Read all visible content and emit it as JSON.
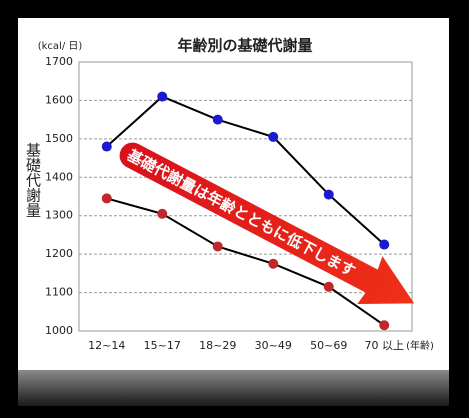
{
  "chart_data": {
    "type": "line",
    "title": "年齢別の基礎代謝量",
    "y_unit": "(kcal/ 日)",
    "ylabel": "基礎代謝量",
    "xlabel": "(年齢)",
    "annotation": "基礎代謝量は年齢とともに低下します",
    "categories": [
      "12~14",
      "15~17",
      "18~29",
      "30~49",
      "50~69",
      "70 以上"
    ],
    "series": [
      {
        "color": "#1a1ad0",
        "values": [
          1480,
          1610,
          1550,
          1505,
          1355,
          1225
        ]
      },
      {
        "color": "#c0282c",
        "values": [
          1345,
          1305,
          1220,
          1175,
          1115,
          1015
        ]
      }
    ],
    "ylim": [
      1000,
      1700
    ],
    "yticks": [
      1000,
      1100,
      1200,
      1300,
      1400,
      1500,
      1600,
      1700
    ],
    "grid": true
  }
}
